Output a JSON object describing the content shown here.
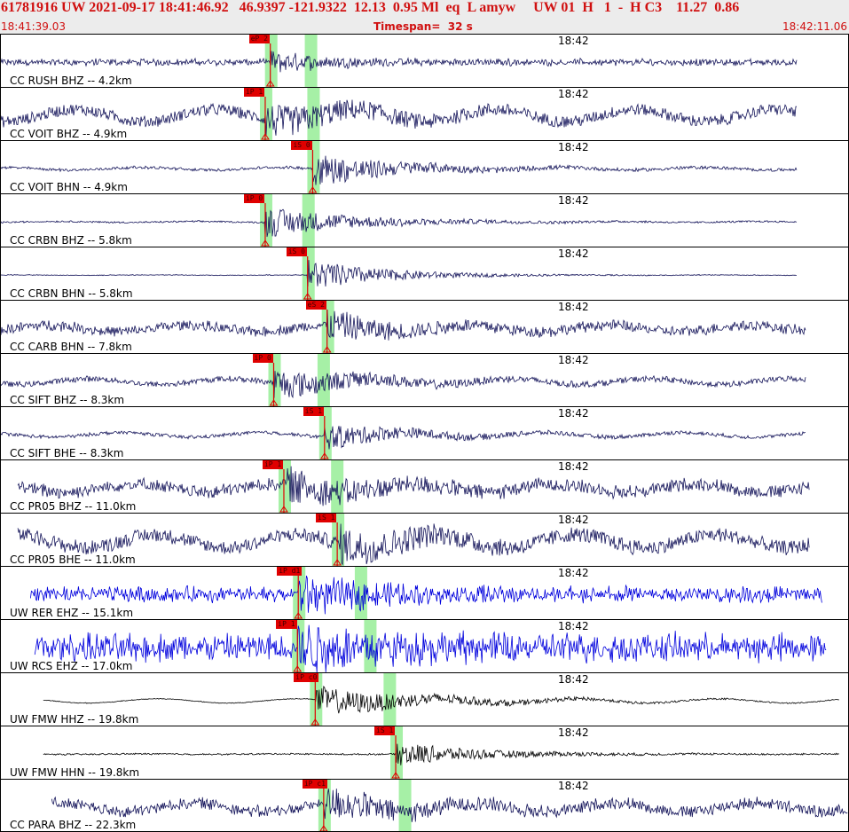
{
  "header": {
    "title": "61781916 UW 2021-09-17 18:41:46.92   46.9397 -121.9322  12.13  0.95 Ml  eq  L amyw     UW 01  H   1  -  H C3    11.27  0.86",
    "start_time": "18:41:39.03",
    "timespan": "Timespan=  32 s",
    "end_time": "18:42:11.06"
  },
  "colors": {
    "header_text": "#d01010",
    "pick": "#e00000",
    "window": "#a6f0a6",
    "trace_cc": "#14145a",
    "trace_rer": "#0000dd",
    "trace_fmw": "#000000"
  },
  "panels": [
    {
      "station": "CC RUSH BHZ -- 4.2km",
      "time_label": "18:42",
      "pick_label": "eP 2",
      "pick_frac": 0.318,
      "window_frac": 0.365,
      "color": "#14145a",
      "amp": 0.22,
      "pre": 0.18,
      "burst": 0.85,
      "decay": 0.06,
      "wave": 0.0,
      "noise": 0.35,
      "start": 0.0,
      "end": 0.94
    },
    {
      "station": "CC VOIT BHZ -- 4.9km",
      "time_label": "18:42",
      "pick_label": "iP 1",
      "pick_frac": 0.312,
      "window_frac": 0.368,
      "color": "#14145a",
      "amp": 0.3,
      "pre": 0.35,
      "burst": 0.8,
      "decay": 0.1,
      "wave": 0.7,
      "noise": 0.06,
      "start": 0.0,
      "end": 0.94
    },
    {
      "station": "CC VOIT BHN -- 4.9km",
      "time_label": "18:42",
      "pick_label": "iS 0",
      "pick_frac": 0.368,
      "window_frac": 0.368,
      "color": "#14145a",
      "amp": 0.3,
      "pre": 0.08,
      "burst": 1.0,
      "decay": 0.1,
      "wave": 0.15,
      "noise": 0.05,
      "start": 0.0,
      "end": 0.94
    },
    {
      "station": "CC CRBN BHZ -- 5.8km",
      "time_label": "18:42",
      "pick_label": "iP 0",
      "pick_frac": 0.312,
      "window_frac": 0.362,
      "color": "#14145a",
      "amp": 0.28,
      "pre": 0.05,
      "burst": 1.0,
      "decay": 0.11,
      "wave": 0.06,
      "noise": 0.03,
      "start": 0.0,
      "end": 0.94
    },
    {
      "station": "CC CRBN BHN -- 5.8km",
      "time_label": "18:42",
      "pick_label": "iS 0",
      "pick_frac": 0.362,
      "window_frac": 0.362,
      "color": "#14145a",
      "amp": 0.3,
      "pre": 0.02,
      "burst": 1.0,
      "decay": 0.09,
      "wave": 0.02,
      "noise": 0.02,
      "start": 0.0,
      "end": 0.94
    },
    {
      "station": "CC CARB BHN -- 7.8km",
      "time_label": "18:42",
      "pick_label": "eS 2",
      "pick_frac": 0.385,
      "window_frac": 0.385,
      "color": "#14145a",
      "amp": 0.28,
      "pre": 0.3,
      "burst": 0.8,
      "decay": 0.08,
      "wave": 0.4,
      "noise": 0.2,
      "start": 0.0,
      "end": 0.95
    },
    {
      "station": "CC SIFT BHZ -- 8.3km",
      "time_label": "18:42",
      "pick_label": "iP 0",
      "pick_frac": 0.322,
      "window_frac": 0.38,
      "color": "#14145a",
      "amp": 0.28,
      "pre": 0.18,
      "burst": 0.9,
      "decay": 0.1,
      "wave": 0.35,
      "noise": 0.06,
      "start": 0.0,
      "end": 0.95
    },
    {
      "station": "CC SIFT BHE -- 8.3km",
      "time_label": "18:42",
      "pick_label": "iS 1",
      "pick_frac": 0.382,
      "window_frac": 0.382,
      "color": "#14145a",
      "amp": 0.26,
      "pre": 0.12,
      "burst": 0.85,
      "decay": 0.09,
      "wave": 0.3,
      "noise": 0.05,
      "start": 0.0,
      "end": 0.95
    },
    {
      "station": "CC PR05 BHZ -- 11.0km",
      "time_label": "18:42",
      "pick_label": "iP 1",
      "pick_frac": 0.334,
      "window_frac": 0.396,
      "color": "#14145a",
      "amp": 0.3,
      "pre": 0.35,
      "burst": 0.85,
      "decay": 0.1,
      "wave": 0.45,
      "noise": 0.25,
      "start": 0.02,
      "end": 0.955
    },
    {
      "station": "CC PR05 BHE -- 11.0km",
      "time_label": "18:42",
      "pick_label": "iS 1",
      "pick_frac": 0.397,
      "window_frac": 0.397,
      "color": "#14145a",
      "amp": 0.32,
      "pre": 0.4,
      "burst": 0.85,
      "decay": 0.09,
      "wave": 0.7,
      "noise": 0.15,
      "start": 0.02,
      "end": 0.955
    },
    {
      "station": "UW RER EHZ -- 15.1km",
      "time_label": "18:42",
      "pick_label": "iP d1",
      "pick_frac": 0.351,
      "window_frac": 0.424,
      "color": "#0000dd",
      "amp": 0.3,
      "pre": 0.25,
      "burst": 1.0,
      "decay": 0.09,
      "wave": 0.0,
      "noise": 0.7,
      "start": 0.035,
      "end": 0.97
    },
    {
      "station": "UW RCS EHZ -- 17.0km",
      "time_label": "18:42",
      "pick_label": "iP 1",
      "pick_frac": 0.35,
      "window_frac": 0.435,
      "color": "#0000dd",
      "amp": 0.32,
      "pre": 0.55,
      "burst": 1.0,
      "decay": 0.09,
      "wave": 0.0,
      "noise": 0.9,
      "start": 0.04,
      "end": 0.975
    },
    {
      "station": "UW FMW HHZ -- 19.8km",
      "time_label": "18:42",
      "pick_label": "iP c0",
      "pick_frac": 0.371,
      "window_frac": 0.458,
      "color": "#000000",
      "amp": 0.3,
      "pre": 0.02,
      "burst": 0.9,
      "decay": 0.14,
      "wave": 0.25,
      "noise": 0.02,
      "start": 0.05,
      "end": 0.99
    },
    {
      "station": "UW FMW HHN -- 19.8km",
      "time_label": "18:42",
      "pick_label": "iS 1",
      "pick_frac": 0.466,
      "window_frac": 0.466,
      "color": "#000000",
      "amp": 0.26,
      "pre": 0.05,
      "burst": 0.85,
      "decay": 0.1,
      "wave": 0.03,
      "noise": 0.03,
      "start": 0.05,
      "end": 0.99
    },
    {
      "station": "CC PARA BHZ -- 22.3km",
      "time_label": "18:42",
      "pick_label": "iP c1",
      "pick_frac": 0.381,
      "window_frac": 0.476,
      "color": "#14145a",
      "amp": 0.3,
      "pre": 0.3,
      "burst": 0.8,
      "decay": 0.1,
      "wave": 0.5,
      "noise": 0.25,
      "start": 0.06,
      "end": 1.0
    }
  ]
}
